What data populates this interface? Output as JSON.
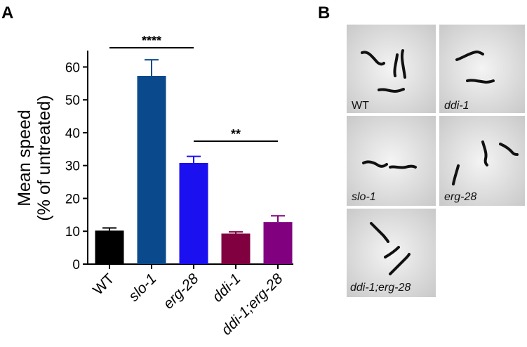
{
  "panel_a_letter": "A",
  "panel_b_letter": "B",
  "chart_data": {
    "type": "bar",
    "categories": [
      "WT",
      "slo-1",
      "erg-28",
      "ddi-1",
      "ddi-1;erg-28"
    ],
    "italic_categories": [
      false,
      true,
      true,
      true,
      true
    ],
    "values": [
      10.2,
      57.3,
      30.8,
      9.3,
      12.8
    ],
    "errors": [
      0.8,
      4.9,
      2.0,
      0.5,
      1.9
    ],
    "colors": [
      "#000000",
      "#0a4a8c",
      "#1a10f0",
      "#800040",
      "#800080"
    ],
    "ylabel_line1": "Mean speed",
    "ylabel_line2": "(% of untreated)",
    "ylim": [
      0,
      65
    ],
    "yticks": [
      0,
      10,
      20,
      30,
      40,
      50,
      60
    ],
    "significance": [
      {
        "from": "WT",
        "to": "erg-28",
        "label": "****"
      },
      {
        "from": "erg-28",
        "to": "ddi-1;erg-28",
        "label": "**"
      }
    ]
  },
  "photos": [
    {
      "label": "WT",
      "italic": false
    },
    {
      "label": "ddi-1",
      "italic": true
    },
    {
      "label": "slo-1",
      "italic": true
    },
    {
      "label": "erg-28",
      "italic": true
    },
    {
      "label": "ddi-1;erg-28",
      "italic": true
    }
  ]
}
